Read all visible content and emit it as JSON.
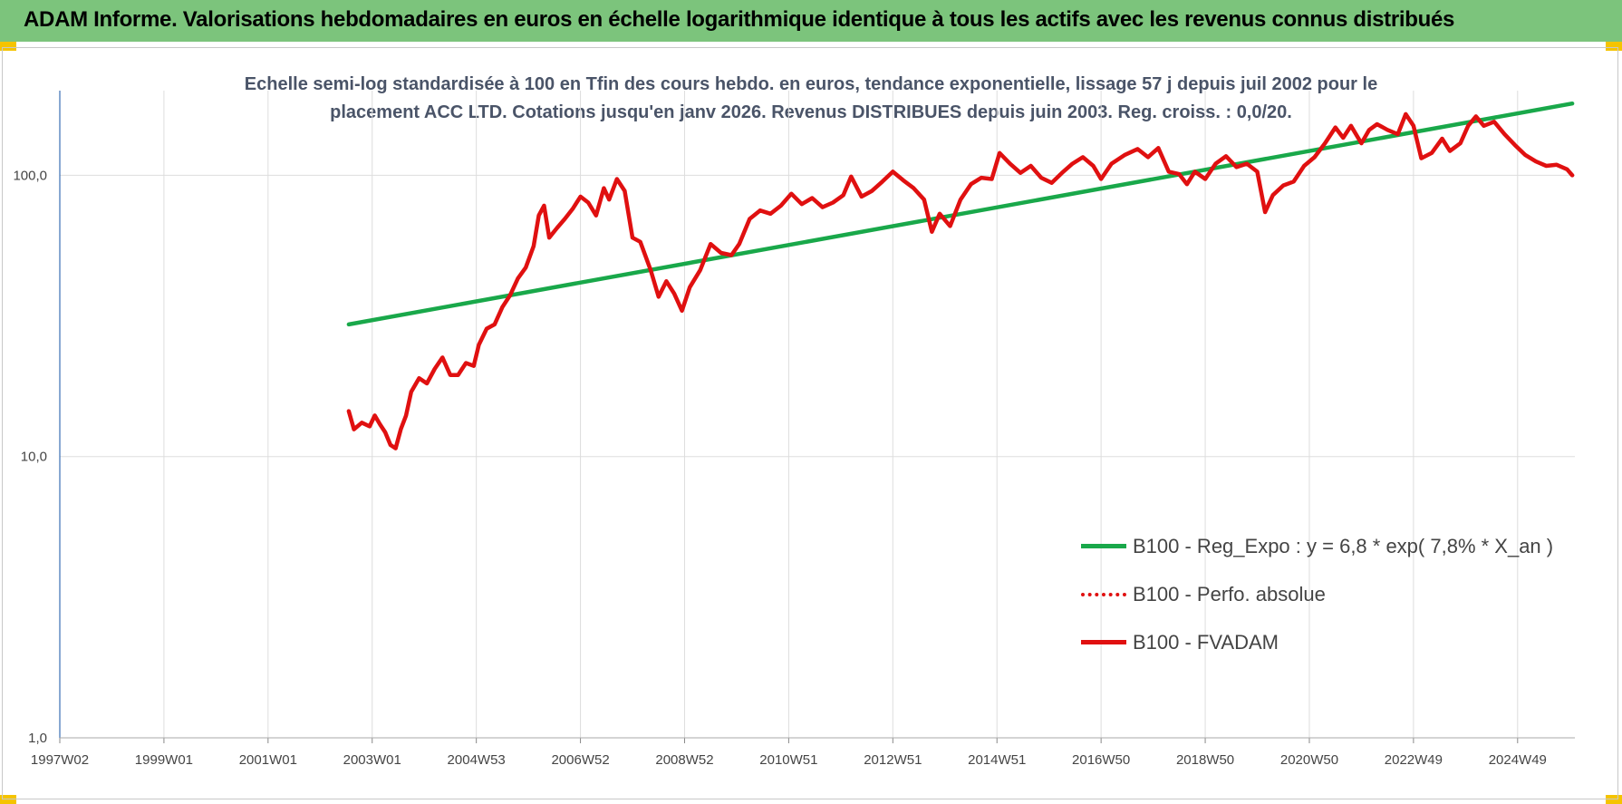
{
  "header": {
    "title": "ADAM Informe. Valorisations hebdomadaires en euros en échelle logarithmique identique à tous les actifs avec les revenus connus distribués"
  },
  "subtitle": {
    "line1": "Echelle semi-log standardisée à 100 en Tfin des cours hebdo. en euros, tendance exponentielle, lissage 57 j depuis juil 2002 pour le",
    "line2": "placement ACC LTD. Cotations jusqu'en janv 2026. Revenus DISTRIBUES depuis juin 2003. Reg. croiss. : 0,0/20."
  },
  "colors": {
    "header_bg": "#7cc47c",
    "corner_accent": "#f5c400",
    "trend": "#19a84a",
    "price": "#e01010",
    "axis": "#3a6fb5",
    "grid": "#dddddd"
  },
  "chart_data": {
    "type": "line",
    "scale_y": "log",
    "ylim": [
      1,
      200
    ],
    "y_ticks": [
      {
        "value": 1,
        "label": "1,0"
      },
      {
        "value": 10,
        "label": "10,0"
      },
      {
        "value": 100,
        "label": "100,0"
      }
    ],
    "xlim": [
      1997.0,
      2026.1
    ],
    "x_ticks": [
      {
        "value": 1997.0,
        "label": "1997W02"
      },
      {
        "value": 1999.0,
        "label": "1999W01"
      },
      {
        "value": 2001.0,
        "label": "2001W01"
      },
      {
        "value": 2003.0,
        "label": "2003W01"
      },
      {
        "value": 2005.0,
        "label": "2004W53"
      },
      {
        "value": 2007.0,
        "label": "2006W52"
      },
      {
        "value": 2009.0,
        "label": "2008W52"
      },
      {
        "value": 2011.0,
        "label": "2010W51"
      },
      {
        "value": 2013.0,
        "label": "2012W51"
      },
      {
        "value": 2015.0,
        "label": "2014W51"
      },
      {
        "value": 2017.0,
        "label": "2016W50"
      },
      {
        "value": 2019.0,
        "label": "2018W50"
      },
      {
        "value": 2021.0,
        "label": "2020W50"
      },
      {
        "value": 2023.0,
        "label": "2022W49"
      },
      {
        "value": 2025.0,
        "label": "2024W49"
      }
    ],
    "grid": "vertical",
    "legend_position": "bottom-right",
    "series": [
      {
        "name": "B100 - Reg_Expo : y = 6,8 * exp( 7,8% *  X_an )",
        "color": "#19a84a",
        "style": "solid",
        "points": [
          [
            2002.55,
            29.5
          ],
          [
            2026.05,
            180
          ]
        ]
      },
      {
        "name": "B100 - Perfo. absolue",
        "color": "#e01010",
        "style": "dotted",
        "points": []
      },
      {
        "name": "B100 - FVADAM",
        "color": "#e01010",
        "style": "solid",
        "points": [
          [
            2002.55,
            14.5
          ],
          [
            2002.65,
            12.5
          ],
          [
            2002.8,
            13.2
          ],
          [
            2002.95,
            12.8
          ],
          [
            2003.05,
            14.0
          ],
          [
            2003.15,
            13.0
          ],
          [
            2003.25,
            12.2
          ],
          [
            2003.35,
            11.0
          ],
          [
            2003.45,
            10.7
          ],
          [
            2003.55,
            12.5
          ],
          [
            2003.65,
            14.0
          ],
          [
            2003.75,
            17.0
          ],
          [
            2003.9,
            19.0
          ],
          [
            2004.05,
            18.2
          ],
          [
            2004.2,
            20.5
          ],
          [
            2004.35,
            22.5
          ],
          [
            2004.5,
            19.5
          ],
          [
            2004.65,
            19.5
          ],
          [
            2004.8,
            21.5
          ],
          [
            2004.95,
            21.0
          ],
          [
            2005.05,
            25.0
          ],
          [
            2005.2,
            28.5
          ],
          [
            2005.35,
            29.5
          ],
          [
            2005.5,
            34.0
          ],
          [
            2005.65,
            37.5
          ],
          [
            2005.8,
            43.0
          ],
          [
            2005.95,
            47.0
          ],
          [
            2006.1,
            56.0
          ],
          [
            2006.2,
            72.0
          ],
          [
            2006.3,
            78.0
          ],
          [
            2006.4,
            60.0
          ],
          [
            2006.55,
            65.0
          ],
          [
            2006.7,
            70.0
          ],
          [
            2006.85,
            76.0
          ],
          [
            2007.0,
            84.0
          ],
          [
            2007.15,
            80.0
          ],
          [
            2007.3,
            72.0
          ],
          [
            2007.45,
            90.0
          ],
          [
            2007.55,
            82.0
          ],
          [
            2007.7,
            97.0
          ],
          [
            2007.85,
            88.0
          ],
          [
            2008.0,
            60.0
          ],
          [
            2008.15,
            58.0
          ],
          [
            2008.35,
            46.0
          ],
          [
            2008.5,
            37.0
          ],
          [
            2008.65,
            42.0
          ],
          [
            2008.8,
            38.0
          ],
          [
            2008.95,
            33.0
          ],
          [
            2009.1,
            40.0
          ],
          [
            2009.3,
            46.0
          ],
          [
            2009.5,
            57.0
          ],
          [
            2009.7,
            53.0
          ],
          [
            2009.9,
            52.0
          ],
          [
            2010.05,
            57.0
          ],
          [
            2010.25,
            70.0
          ],
          [
            2010.45,
            75.0
          ],
          [
            2010.65,
            73.0
          ],
          [
            2010.85,
            78.0
          ],
          [
            2011.05,
            86.0
          ],
          [
            2011.25,
            79.0
          ],
          [
            2011.45,
            83.0
          ],
          [
            2011.65,
            77.0
          ],
          [
            2011.85,
            80.0
          ],
          [
            2012.05,
            85.0
          ],
          [
            2012.2,
            99.0
          ],
          [
            2012.4,
            84.0
          ],
          [
            2012.6,
            88.0
          ],
          [
            2012.8,
            95.0
          ],
          [
            2013.0,
            103.0
          ],
          [
            2013.2,
            96.0
          ],
          [
            2013.4,
            90.0
          ],
          [
            2013.6,
            82.0
          ],
          [
            2013.75,
            63.0
          ],
          [
            2013.9,
            73.0
          ],
          [
            2014.1,
            66.0
          ],
          [
            2014.3,
            82.0
          ],
          [
            2014.5,
            93.0
          ],
          [
            2014.7,
            98.0
          ],
          [
            2014.9,
            97.0
          ],
          [
            2015.05,
            120.0
          ],
          [
            2015.25,
            110.0
          ],
          [
            2015.45,
            102.0
          ],
          [
            2015.65,
            108.0
          ],
          [
            2015.85,
            98.0
          ],
          [
            2016.05,
            94.0
          ],
          [
            2016.25,
            102.0
          ],
          [
            2016.45,
            110.0
          ],
          [
            2016.65,
            116.0
          ],
          [
            2016.85,
            108.0
          ],
          [
            2017.0,
            97.0
          ],
          [
            2017.2,
            110.0
          ],
          [
            2017.45,
            118.0
          ],
          [
            2017.7,
            124.0
          ],
          [
            2017.9,
            116.0
          ],
          [
            2018.1,
            125.0
          ],
          [
            2018.3,
            103.0
          ],
          [
            2018.5,
            101.0
          ],
          [
            2018.65,
            93.0
          ],
          [
            2018.8,
            103.0
          ],
          [
            2019.0,
            97.0
          ],
          [
            2019.2,
            110.0
          ],
          [
            2019.4,
            117.0
          ],
          [
            2019.6,
            107.0
          ],
          [
            2019.8,
            110.0
          ],
          [
            2020.0,
            103.0
          ],
          [
            2020.15,
            74.0
          ],
          [
            2020.3,
            85.0
          ],
          [
            2020.5,
            92.0
          ],
          [
            2020.7,
            95.0
          ],
          [
            2020.9,
            108.0
          ],
          [
            2021.1,
            116.0
          ],
          [
            2021.3,
            130.0
          ],
          [
            2021.5,
            148.0
          ],
          [
            2021.65,
            136.0
          ],
          [
            2021.8,
            150.0
          ],
          [
            2022.0,
            130.0
          ],
          [
            2022.15,
            145.0
          ],
          [
            2022.3,
            152.0
          ],
          [
            2022.5,
            145.0
          ],
          [
            2022.7,
            140.0
          ],
          [
            2022.85,
            165.0
          ],
          [
            2023.0,
            150.0
          ],
          [
            2023.15,
            115.0
          ],
          [
            2023.35,
            120.0
          ],
          [
            2023.55,
            135.0
          ],
          [
            2023.7,
            122.0
          ],
          [
            2023.9,
            130.0
          ],
          [
            2024.05,
            150.0
          ],
          [
            2024.2,
            162.0
          ],
          [
            2024.35,
            150.0
          ],
          [
            2024.55,
            155.0
          ],
          [
            2024.75,
            140.0
          ],
          [
            2024.95,
            128.0
          ],
          [
            2025.15,
            118.0
          ],
          [
            2025.35,
            112.0
          ],
          [
            2025.55,
            108.0
          ],
          [
            2025.75,
            109.0
          ],
          [
            2025.95,
            105.0
          ],
          [
            2026.05,
            100.0
          ]
        ]
      }
    ]
  }
}
